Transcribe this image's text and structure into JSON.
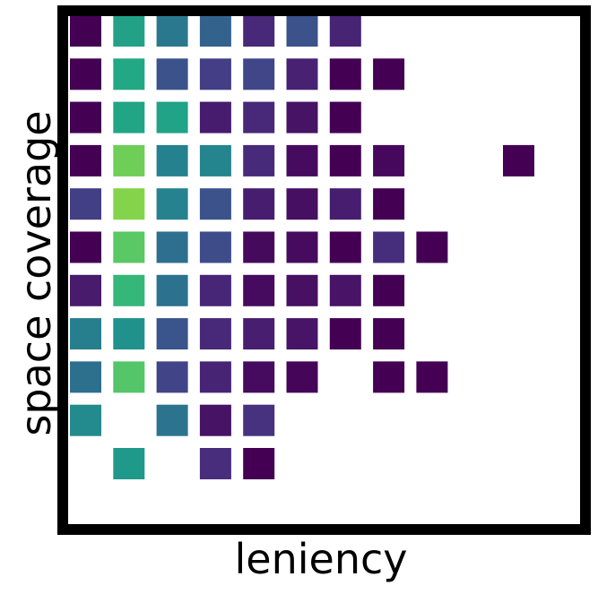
{
  "chart_data": {
    "type": "heatmap",
    "xlabel": "leniency",
    "ylabel": "space coverage",
    "grid": false,
    "legend": "none",
    "colormap": "viridis",
    "n_cols": 12,
    "n_rows": 12,
    "cells": [
      {
        "col": 0,
        "row": 0,
        "color": "#440154"
      },
      {
        "col": 1,
        "row": 0,
        "color": "#22a187"
      },
      {
        "col": 2,
        "row": 0,
        "color": "#2a788e"
      },
      {
        "col": 3,
        "row": 0,
        "color": "#33638d"
      },
      {
        "col": 4,
        "row": 0,
        "color": "#482878"
      },
      {
        "col": 5,
        "row": 0,
        "color": "#3b528b"
      },
      {
        "col": 6,
        "row": 0,
        "color": "#482475"
      },
      {
        "col": 0,
        "row": 1,
        "color": "#440154"
      },
      {
        "col": 1,
        "row": 1,
        "color": "#22a884"
      },
      {
        "col": 2,
        "row": 1,
        "color": "#3b528b"
      },
      {
        "col": 3,
        "row": 1,
        "color": "#433e85"
      },
      {
        "col": 4,
        "row": 1,
        "color": "#404688"
      },
      {
        "col": 5,
        "row": 1,
        "color": "#482173"
      },
      {
        "col": 6,
        "row": 1,
        "color": "#440154"
      },
      {
        "col": 7,
        "row": 1,
        "color": "#440154"
      },
      {
        "col": 0,
        "row": 2,
        "color": "#440154"
      },
      {
        "col": 1,
        "row": 2,
        "color": "#21a585"
      },
      {
        "col": 2,
        "row": 2,
        "color": "#20a386"
      },
      {
        "col": 3,
        "row": 2,
        "color": "#471b6e"
      },
      {
        "col": 4,
        "row": 2,
        "color": "#482878"
      },
      {
        "col": 5,
        "row": 2,
        "color": "#471365"
      },
      {
        "col": 6,
        "row": 2,
        "color": "#440154"
      },
      {
        "col": 0,
        "row": 3,
        "color": "#440154"
      },
      {
        "col": 1,
        "row": 3,
        "color": "#6ece58"
      },
      {
        "col": 2,
        "row": 3,
        "color": "#26818e"
      },
      {
        "col": 3,
        "row": 3,
        "color": "#25858e"
      },
      {
        "col": 4,
        "row": 3,
        "color": "#472a7a"
      },
      {
        "col": 5,
        "row": 3,
        "color": "#460b5e"
      },
      {
        "col": 6,
        "row": 3,
        "color": "#440154"
      },
      {
        "col": 7,
        "row": 3,
        "color": "#46085c"
      },
      {
        "col": 10,
        "row": 3,
        "color": "#440154"
      },
      {
        "col": 0,
        "row": 4,
        "color": "#423f85"
      },
      {
        "col": 1,
        "row": 4,
        "color": "#84d44b"
      },
      {
        "col": 2,
        "row": 4,
        "color": "#26828e"
      },
      {
        "col": 3,
        "row": 4,
        "color": "#3b528b"
      },
      {
        "col": 4,
        "row": 4,
        "color": "#471d6f"
      },
      {
        "col": 5,
        "row": 4,
        "color": "#460f62"
      },
      {
        "col": 6,
        "row": 4,
        "color": "#471d6f"
      },
      {
        "col": 7,
        "row": 4,
        "color": "#440154"
      },
      {
        "col": 0,
        "row": 5,
        "color": "#440154"
      },
      {
        "col": 1,
        "row": 5,
        "color": "#5ac864"
      },
      {
        "col": 2,
        "row": 5,
        "color": "#2e6e8e"
      },
      {
        "col": 3,
        "row": 5,
        "color": "#3e4c8a"
      },
      {
        "col": 4,
        "row": 5,
        "color": "#460a5d"
      },
      {
        "col": 5,
        "row": 5,
        "color": "#460b5e"
      },
      {
        "col": 6,
        "row": 5,
        "color": "#440154"
      },
      {
        "col": 7,
        "row": 5,
        "color": "#472e7c"
      },
      {
        "col": 8,
        "row": 5,
        "color": "#440154"
      },
      {
        "col": 0,
        "row": 6,
        "color": "#481b6d"
      },
      {
        "col": 1,
        "row": 6,
        "color": "#35b779"
      },
      {
        "col": 2,
        "row": 6,
        "color": "#2c728e"
      },
      {
        "col": 3,
        "row": 6,
        "color": "#482677"
      },
      {
        "col": 4,
        "row": 6,
        "color": "#460b5e"
      },
      {
        "col": 5,
        "row": 6,
        "color": "#471063"
      },
      {
        "col": 6,
        "row": 6,
        "color": "#481467"
      },
      {
        "col": 7,
        "row": 6,
        "color": "#440154"
      },
      {
        "col": 0,
        "row": 7,
        "color": "#277f8e"
      },
      {
        "col": 1,
        "row": 7,
        "color": "#21918c"
      },
      {
        "col": 2,
        "row": 7,
        "color": "#3a548c"
      },
      {
        "col": 3,
        "row": 7,
        "color": "#482979"
      },
      {
        "col": 4,
        "row": 7,
        "color": "#481f70"
      },
      {
        "col": 5,
        "row": 7,
        "color": "#481467"
      },
      {
        "col": 6,
        "row": 7,
        "color": "#440154"
      },
      {
        "col": 7,
        "row": 7,
        "color": "#440154"
      },
      {
        "col": 0,
        "row": 8,
        "color": "#2d708e"
      },
      {
        "col": 1,
        "row": 8,
        "color": "#54c568"
      },
      {
        "col": 2,
        "row": 8,
        "color": "#414487"
      },
      {
        "col": 3,
        "row": 8,
        "color": "#482475"
      },
      {
        "col": 4,
        "row": 8,
        "color": "#460b5e"
      },
      {
        "col": 5,
        "row": 8,
        "color": "#450559"
      },
      {
        "col": 7,
        "row": 8,
        "color": "#440154"
      },
      {
        "col": 8,
        "row": 8,
        "color": "#440154"
      },
      {
        "col": 0,
        "row": 9,
        "color": "#238a8d"
      },
      {
        "col": 2,
        "row": 9,
        "color": "#2c738e"
      },
      {
        "col": 3,
        "row": 9,
        "color": "#471365"
      },
      {
        "col": 4,
        "row": 9,
        "color": "#46327e"
      },
      {
        "col": 1,
        "row": 10,
        "color": "#1f998a"
      },
      {
        "col": 3,
        "row": 10,
        "color": "#472d7b"
      },
      {
        "col": 4,
        "row": 10,
        "color": "#440154"
      }
    ]
  }
}
